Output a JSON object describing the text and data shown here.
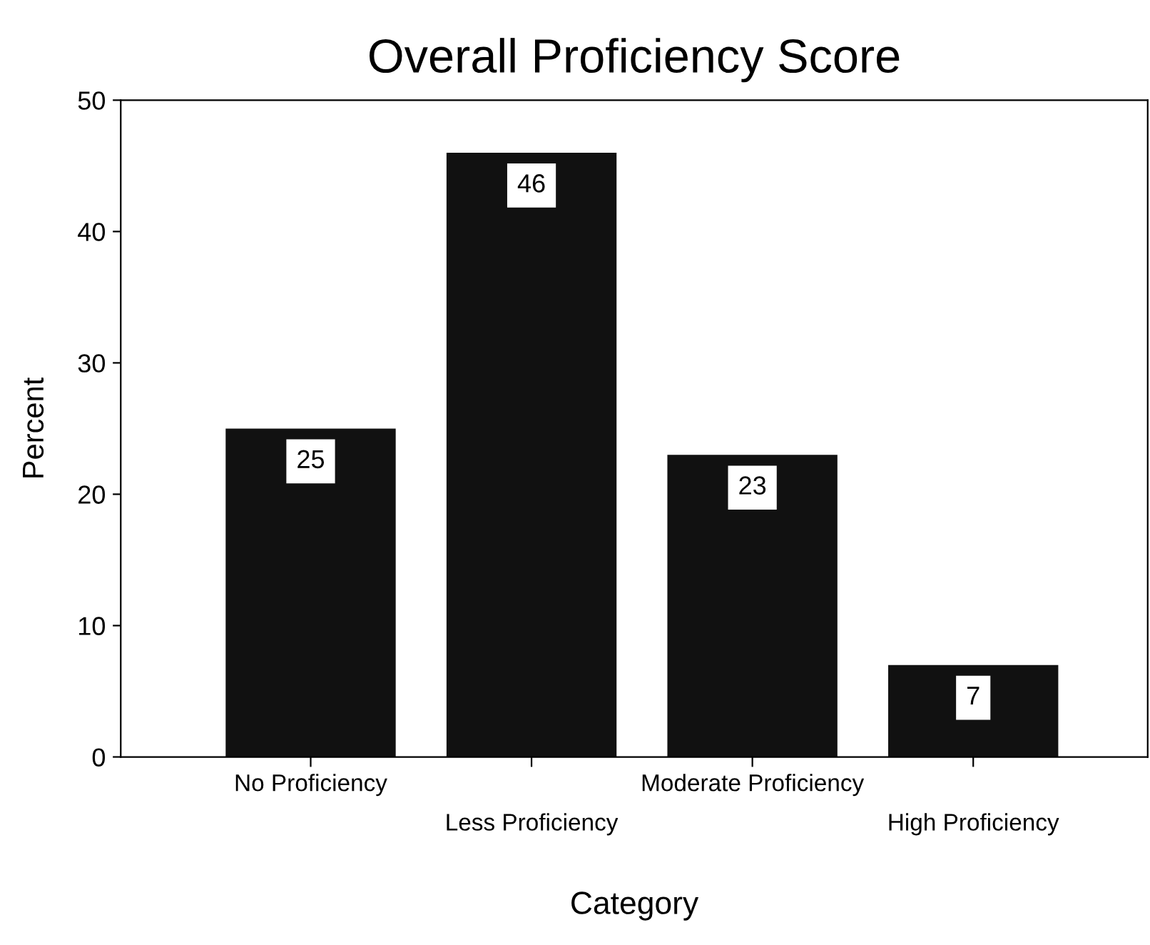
{
  "chart_data": {
    "type": "bar",
    "title": "Overall Proficiency Score",
    "xlabel": "Category",
    "ylabel": "Percent",
    "categories": [
      "No Proficiency",
      "Less Proficiency",
      "Moderate Proficiency",
      "High Proficiency"
    ],
    "values": [
      25,
      46,
      23,
      7
    ],
    "color": "#111111",
    "ylim": [
      0,
      50
    ],
    "yticks": [
      0,
      10,
      20,
      30,
      40,
      50
    ],
    "data_labels": true,
    "grid": false,
    "legend": false
  }
}
